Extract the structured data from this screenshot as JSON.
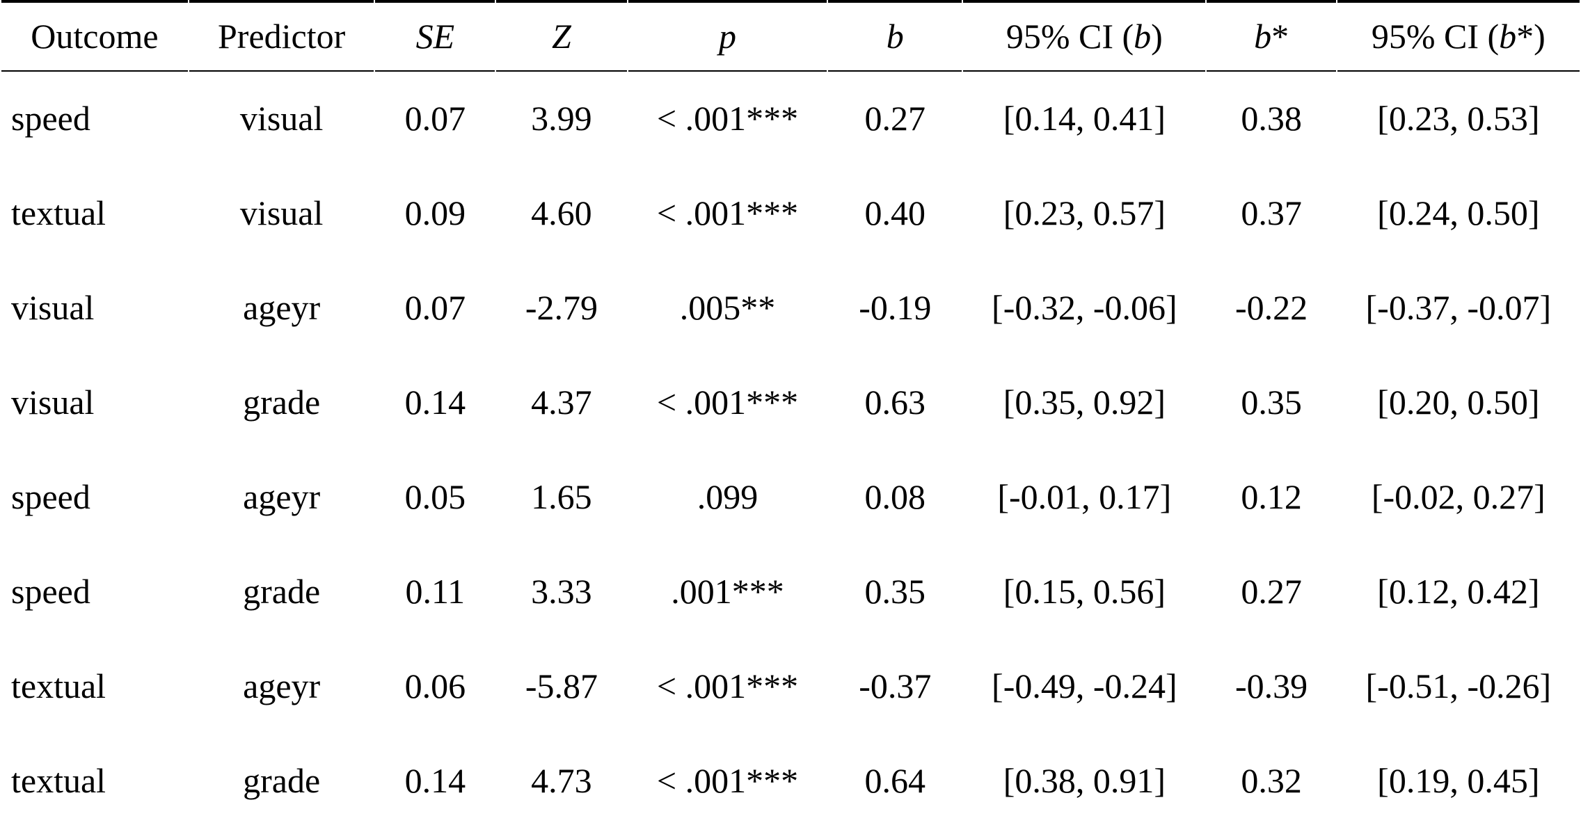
{
  "table": {
    "colors": {
      "text": "#000000",
      "background": "#ffffff",
      "border": "#000000"
    },
    "headers": [
      {
        "id": "outcome",
        "segments": [
          {
            "text": "Outcome",
            "italic": false
          }
        ]
      },
      {
        "id": "predictor",
        "segments": [
          {
            "text": "Predictor",
            "italic": false
          }
        ]
      },
      {
        "id": "se",
        "segments": [
          {
            "text": "SE",
            "italic": true
          }
        ]
      },
      {
        "id": "z",
        "segments": [
          {
            "text": "Z",
            "italic": true
          }
        ]
      },
      {
        "id": "p",
        "segments": [
          {
            "text": "p",
            "italic": true
          }
        ]
      },
      {
        "id": "b",
        "segments": [
          {
            "text": "b",
            "italic": true
          }
        ]
      },
      {
        "id": "ci-b",
        "segments": [
          {
            "text": "95% CI (",
            "italic": false
          },
          {
            "text": "b",
            "italic": true
          },
          {
            "text": ")",
            "italic": false
          }
        ]
      },
      {
        "id": "b-star",
        "segments": [
          {
            "text": "b",
            "italic": true
          },
          {
            "text": "*",
            "italic": false
          }
        ]
      },
      {
        "id": "ci-b-star",
        "segments": [
          {
            "text": "95% CI (",
            "italic": false
          },
          {
            "text": "b",
            "italic": true
          },
          {
            "text": "*)",
            "italic": false
          }
        ]
      }
    ],
    "rows": [
      [
        "speed",
        "visual",
        "0.07",
        "3.99",
        "< .001***",
        "0.27",
        "[0.14, 0.41]",
        "0.38",
        "[0.23, 0.53]"
      ],
      [
        "textual",
        "visual",
        "0.09",
        "4.60",
        "< .001***",
        "0.40",
        "[0.23, 0.57]",
        "0.37",
        "[0.24, 0.50]"
      ],
      [
        "visual",
        "ageyr",
        "0.07",
        "-2.79",
        ".005**",
        "-0.19",
        "[-0.32, -0.06]",
        "-0.22",
        "[-0.37, -0.07]"
      ],
      [
        "visual",
        "grade",
        "0.14",
        "4.37",
        "< .001***",
        "0.63",
        "[0.35, 0.92]",
        "0.35",
        "[0.20, 0.50]"
      ],
      [
        "speed",
        "ageyr",
        "0.05",
        "1.65",
        ".099",
        "0.08",
        "[-0.01, 0.17]",
        "0.12",
        "[-0.02, 0.27]"
      ],
      [
        "speed",
        "grade",
        "0.11",
        "3.33",
        ".001***",
        "0.35",
        "[0.15, 0.56]",
        "0.27",
        "[0.12, 0.42]"
      ],
      [
        "textual",
        "ageyr",
        "0.06",
        "-5.87",
        "< .001***",
        "-0.37",
        "[-0.49, -0.24]",
        "-0.39",
        "[-0.51, -0.26]"
      ],
      [
        "textual",
        "grade",
        "0.14",
        "4.73",
        "< .001***",
        "0.64",
        "[0.38, 0.91]",
        "0.32",
        "[0.19, 0.45]"
      ]
    ]
  }
}
